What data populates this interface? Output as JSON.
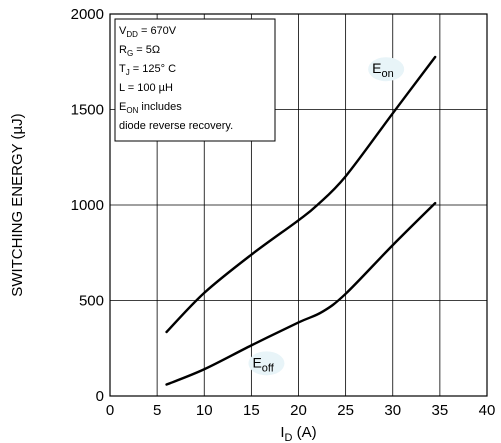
{
  "chart_data": {
    "type": "line",
    "title": "",
    "xlabel": "I",
    "xlabel_sub": "D",
    "xlabel_unit": " (A)",
    "ylabel": "SWITCHING ENERGY (µJ)",
    "xlim": [
      0,
      40
    ],
    "ylim": [
      0,
      2000
    ],
    "xticks": [
      0,
      5,
      10,
      15,
      20,
      25,
      30,
      35,
      40
    ],
    "yticks": [
      0,
      500,
      1000,
      1500,
      2000
    ],
    "grid": true,
    "series": [
      {
        "name": "E",
        "name_sub": "on",
        "x": [
          6,
          10,
          15,
          20,
          22,
          25,
          30,
          34.5
        ],
        "y": [
          335,
          540,
          740,
          920,
          1000,
          1150,
          1480,
          1775
        ]
      },
      {
        "name": "E",
        "name_sub": "off",
        "x": [
          6,
          10,
          15,
          20,
          22.5,
          25,
          30,
          34.5
        ],
        "y": [
          60,
          140,
          265,
          385,
          440,
          535,
          790,
          1010
        ]
      }
    ],
    "annotation_box": [
      {
        "main": "V",
        "sub": "DD",
        "rest": " = 670V"
      },
      {
        "main": "R",
        "sub": "G",
        "rest": " = 5Ω"
      },
      {
        "main": "T",
        "sub": "J",
        "rest": " = 125° C"
      },
      {
        "main": "L = 100 µH",
        "sub": "",
        "rest": ""
      },
      {
        "main": "E",
        "sub": "ON",
        "rest": " includes"
      },
      {
        "main": "diode reverse recovery.",
        "sub": "",
        "rest": ""
      }
    ],
    "colors": {
      "line": "#000000",
      "grid": "#000000",
      "label_highlight": "#e8f4f8"
    }
  }
}
